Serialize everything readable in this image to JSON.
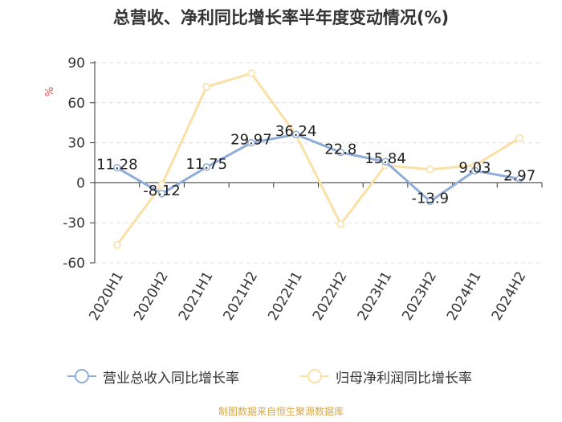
{
  "chart_data": {
    "type": "line",
    "title": "总营收、净利同比增长率半年度变动情况(%)",
    "ylabel": "%",
    "xlabel": "",
    "categories": [
      "2020H1",
      "2020H2",
      "2021H1",
      "2021H2",
      "2022H1",
      "2022H2",
      "2023H1",
      "2023H2",
      "2024H1",
      "2024H2"
    ],
    "ylim": [
      -60,
      90
    ],
    "yticks": [
      90,
      60,
      30,
      0,
      -30,
      -60
    ],
    "grid": true,
    "legend_position": "bottom",
    "series": [
      {
        "name": "营业总收入同比增长率",
        "color": "#8fadd9",
        "values": [
          11.28,
          -8.12,
          11.75,
          29.97,
          36.24,
          22.8,
          15.84,
          -13.9,
          9.03,
          2.97
        ],
        "data_labels": [
          "11.28",
          "-8.12",
          "11.75",
          "29.97",
          "36.24",
          "22.8",
          "15.84",
          "-13.9",
          "9.03",
          "2.97"
        ]
      },
      {
        "name": "归母净利润同比增长率",
        "color": "#fbe0a6",
        "values": [
          -46.5,
          -1.5,
          72,
          82,
          36,
          -31,
          13,
          10,
          13,
          33.5
        ]
      }
    ]
  },
  "source_note": "制图数据来自恒生聚源数据库"
}
